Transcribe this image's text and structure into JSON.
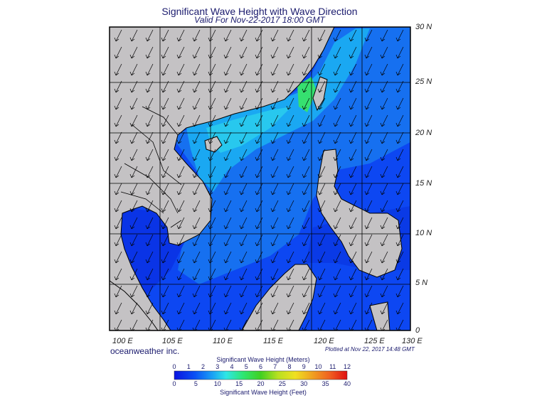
{
  "header": {
    "title": "Significant Wave Height with Wave Direction",
    "subtitle": "Valid For Nov-22-2017 18:00 GMT"
  },
  "axes": {
    "lat_labels": [
      "30 N",
      "25 N",
      "20 N",
      "15 N",
      "10 N",
      "5 N",
      "0"
    ],
    "lon_labels": [
      "100 E",
      "105 E",
      "110 E",
      "115 E",
      "120 E",
      "125 E",
      "130 E"
    ]
  },
  "footer": {
    "brand": "oceanweather inc.",
    "plotted": "Plotted at Nov 22, 2017 14:48 GMT"
  },
  "colorbar": {
    "title_meters": "Significant Wave Height (Meters)",
    "title_feet": "Significant Wave Height (Feet)",
    "meters_ticks": [
      "0",
      "1",
      "2",
      "3",
      "4",
      "5",
      "6",
      "7",
      "8",
      "9",
      "10",
      "11",
      "12"
    ],
    "feet_ticks": [
      "0",
      "5",
      "10",
      "15",
      "20",
      "25",
      "30",
      "35",
      "40"
    ]
  },
  "colors": {
    "land": "#c4c2c4",
    "ocean_deep": "#0a3cf5",
    "ocean_mid": "#1a78f0",
    "ocean_light": "#2ab0f2",
    "highlight": "#36e070"
  }
}
